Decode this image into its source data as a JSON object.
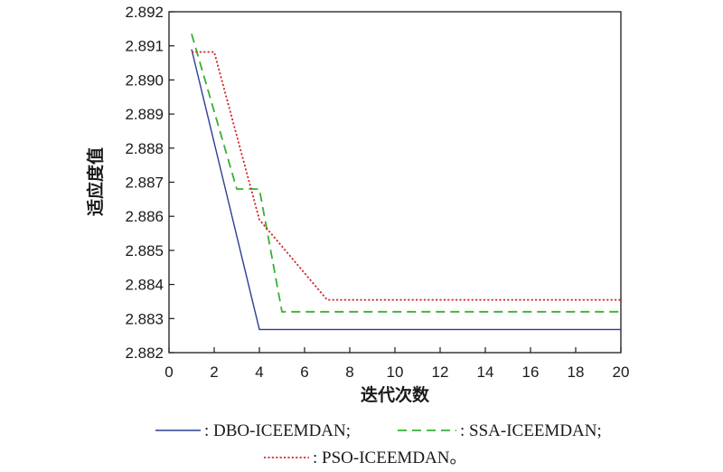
{
  "chart_data": {
    "type": "line",
    "xlabel": "迭代次数",
    "ylabel": "适应度值",
    "xlim": [
      0,
      20
    ],
    "ylim": [
      2.882,
      2.892
    ],
    "xticks": [
      "0",
      "2",
      "4",
      "6",
      "8",
      "10",
      "12",
      "14",
      "16",
      "18",
      "20"
    ],
    "yticks": [
      "2.882",
      "2.883",
      "2.884",
      "2.885",
      "2.886",
      "2.887",
      "2.888",
      "2.889",
      "2.890",
      "2.891",
      "2.892"
    ],
    "grid": false,
    "legend_position": "bottom",
    "series": [
      {
        "name": ": DBO-ICEEMDAN;",
        "color": "#2b3f8f",
        "style": "solid",
        "points": [
          [
            1,
            2.8909
          ],
          [
            4,
            2.88268
          ],
          [
            20,
            2.88268
          ]
        ]
      },
      {
        "name": ": SSA-ICEEMDAN;",
        "color": "#33b233",
        "style": "dashed",
        "points": [
          [
            1,
            2.89135
          ],
          [
            3,
            2.8868
          ],
          [
            4,
            2.8868
          ],
          [
            5,
            2.8832
          ],
          [
            20,
            2.8832
          ]
        ]
      },
      {
        "name": ": PSO-ICEEMDAN。",
        "color": "#d62828",
        "style": "dotted",
        "points": [
          [
            1,
            2.89082
          ],
          [
            2,
            2.89082
          ],
          [
            4,
            2.8859
          ],
          [
            7,
            2.88355
          ],
          [
            20,
            2.88355
          ]
        ]
      }
    ]
  }
}
